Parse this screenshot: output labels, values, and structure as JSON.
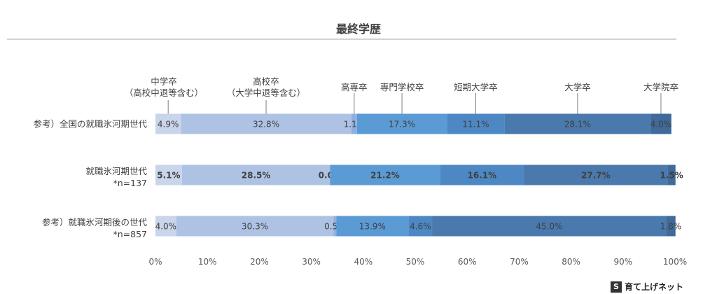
{
  "chart_data": {
    "type": "bar",
    "orientation": "horizontal",
    "stacked": true,
    "title": "最終学歴",
    "categories": [
      {
        "label": "参考）全国の就職氷河期世代",
        "sub": ""
      },
      {
        "label": "就職氷河期世代",
        "sub": "*n=137"
      },
      {
        "label": "参考）就職氷河期後の世代",
        "sub": "*n=857"
      }
    ],
    "series": [
      {
        "name": "中学卒（高校中退等含む）",
        "legend_lines": [
          "中学卒",
          "（高校中退等含む）"
        ],
        "color": "#c9d5ea",
        "values": [
          4.9,
          5.1,
          4.0
        ],
        "value_labels": [
          "4.9%",
          "5.1%",
          "4.0%"
        ]
      },
      {
        "name": "高校卒（大学中退等含む）",
        "legend_lines": [
          "高校卒",
          "（大学中退等含む）"
        ],
        "color": "#aec3e4",
        "values": [
          32.8,
          28.5,
          30.3
        ],
        "value_labels": [
          "32.8%",
          "28.5%",
          "30.3%"
        ]
      },
      {
        "name": "高専卒",
        "legend_lines": [
          "高専卒"
        ],
        "color": "#8fb0df",
        "values": [
          1.1,
          0.0,
          0.5
        ],
        "value_labels": [
          "1.1%",
          "0.0%",
          "0.5%"
        ]
      },
      {
        "name": "専門学校卒",
        "legend_lines": [
          "専門学校卒"
        ],
        "color": "#5b9bd5",
        "values": [
          17.3,
          21.2,
          13.9
        ],
        "value_labels": [
          "17.3%",
          "21.2%",
          "13.9%"
        ]
      },
      {
        "name": "短期大学卒",
        "legend_lines": [
          "短期大学卒"
        ],
        "color": "#4d88c4",
        "values": [
          11.1,
          16.1,
          4.6
        ],
        "value_labels": [
          "11.1%",
          "16.1%",
          "4.6%"
        ]
      },
      {
        "name": "大学卒",
        "legend_lines": [
          "大学卒"
        ],
        "color": "#4a79ad",
        "values": [
          28.1,
          27.7,
          45.0
        ],
        "value_labels": [
          "28.1%",
          "27.7%",
          "45.0%"
        ]
      },
      {
        "name": "大学院卒",
        "legend_lines": [
          "大学院卒"
        ],
        "color": "#3f6a9a",
        "values": [
          4.0,
          1.5,
          1.8
        ],
        "value_labels": [
          "4.0%",
          "1.5%",
          "1.8%"
        ]
      }
    ],
    "bold_row": 1,
    "xlim": [
      0,
      100
    ],
    "xticks": [
      "0%",
      "10%",
      "20%",
      "30%",
      "40%",
      "50%",
      "60%",
      "70%",
      "80%",
      "90%",
      "100%"
    ],
    "xticks_values": [
      0,
      10,
      20,
      30,
      40,
      50,
      60,
      70,
      80,
      90,
      100
    ],
    "grid": false,
    "legend_placement": "top, labels with leader lines above the first bar"
  },
  "watermark": {
    "mark": "S",
    "text": "育て上げネット"
  }
}
